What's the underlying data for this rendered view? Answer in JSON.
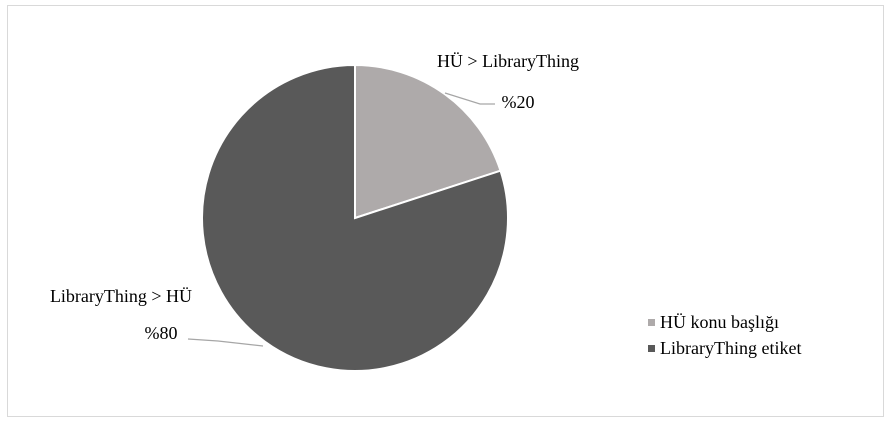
{
  "chart_data": {
    "type": "pie",
    "title": "",
    "slices": [
      {
        "name": "HÜ konu başlığı",
        "value": 20,
        "color": "#aeaaaa",
        "label_name": "HÜ > LibraryThing",
        "label_value": "%20"
      },
      {
        "name": "LibraryThing etiket",
        "value": 80,
        "color": "#595959",
        "label_name": "LibraryThing > HÜ",
        "label_value": "%80"
      }
    ],
    "legend_position": "right"
  }
}
